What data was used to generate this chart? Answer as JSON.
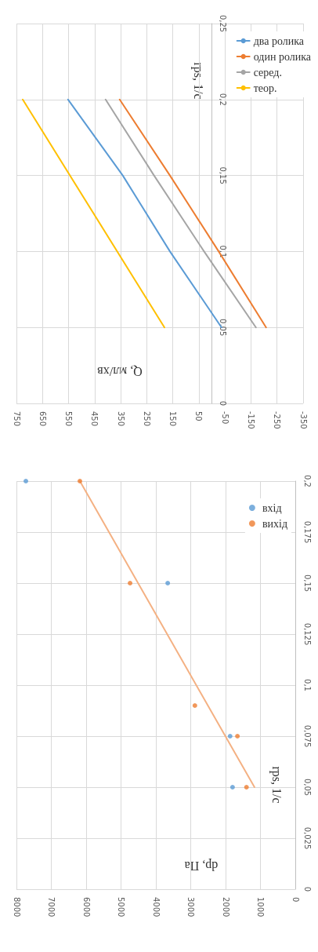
{
  "chart_data": [
    {
      "type": "line",
      "xlabel": "Q, мл/хв",
      "ylabel": "rps, 1/с",
      "xlim": [
        750,
        -350
      ],
      "xticks": [
        750,
        650,
        550,
        450,
        350,
        250,
        150,
        50,
        -50,
        -150,
        -250,
        -350
      ],
      "ylim": [
        0,
        0.25
      ],
      "yticks": [
        0,
        {
          "value": 0.05,
          "label": "0,05"
        },
        {
          "value": 0.1,
          "label": "0,1"
        },
        {
          "value": 0.15,
          "label": "0,15"
        },
        {
          "value": 0.2,
          "label": "0,2"
        },
        {
          "value": 0.25,
          "label": "0,25"
        }
      ],
      "grid": true,
      "legend": "right",
      "marker": "none",
      "series": [
        {
          "name": "два ролика",
          "color": "#5b9bd5",
          "x": [
            -37,
            161,
            342,
            552
          ],
          "values": [
            0.05,
            0.1,
            0.15,
            0.2
          ]
        },
        {
          "name": "один ролика",
          "color": "#ed7d31",
          "x": [
            -208,
            -26,
            161,
            354
          ],
          "values": [
            0.05,
            0.1,
            0.15,
            0.2
          ]
        },
        {
          "name": "серед.",
          "color": "#a5a5a5",
          "x": [
            -169,
            30,
            222,
            408
          ],
          "values": [
            0.05,
            0.1,
            0.15,
            0.2
          ]
        },
        {
          "name": "теор.",
          "color": "#ffc000",
          "x": [
            182,
            726
          ],
          "values": [
            0.05,
            0.2
          ]
        }
      ]
    },
    {
      "type": "scatter",
      "xlabel": "dp, Па",
      "ylabel": "rps, 1/с",
      "xlim": [
        8000,
        0
      ],
      "xticks": [
        8000,
        7000,
        6000,
        5000,
        4000,
        3000,
        2000,
        1000,
        0
      ],
      "ylim": [
        0,
        0.2
      ],
      "yticks": [
        0,
        {
          "value": 0.025,
          "label": "0,025"
        },
        {
          "value": 0.05,
          "label": "0,05"
        },
        {
          "value": 0.075,
          "label": "0,075"
        },
        {
          "value": 0.1,
          "label": "0,1"
        },
        {
          "value": 0.125,
          "label": "0,125"
        },
        {
          "value": 0.15,
          "label": "0,15"
        },
        {
          "value": 0.175,
          "label": "0,175"
        },
        {
          "value": 0.2,
          "label": "0,2"
        }
      ],
      "grid": true,
      "legend": "top right",
      "marker": "circle",
      "series": [
        {
          "name": "вхід",
          "color": "#5b9bd5",
          "x": [
            1800,
            1870,
            3660,
            7730
          ],
          "values": [
            0.05,
            0.075,
            0.15,
            0.2
          ]
        },
        {
          "name": "вихід",
          "color": "#ed7d31",
          "x": [
            1400,
            1660,
            2880,
            4740,
            6180
          ],
          "values": [
            0.05,
            0.075,
            0.09,
            0.15,
            0.2
          ]
        },
        {
          "type": "line",
          "marker": "none",
          "color": "#f4b183",
          "x": [
            1170,
            6180
          ],
          "values": [
            0.05,
            0.2
          ]
        }
      ]
    }
  ]
}
